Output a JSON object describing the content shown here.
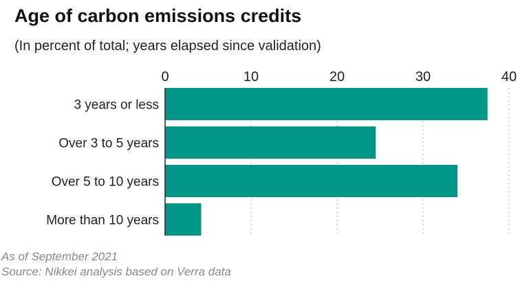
{
  "header": {
    "title": "Age of carbon emissions credits",
    "subtitle": "(In percent of total; years elapsed since validation)"
  },
  "footer": {
    "date_note": "As of September 2021",
    "source_note": "Source: Nikkei analysis based on Verra data"
  },
  "colors": {
    "bar": "#009688",
    "grid": "#bbbbbb",
    "axis": "#222222",
    "text": "#222222"
  },
  "chart_data": {
    "type": "bar",
    "orientation": "horizontal",
    "title": "Age of carbon emissions credits",
    "subtitle": "(In percent of total; years elapsed since validation)",
    "categories": [
      "3 years or less",
      "Over 3 to 5 years",
      "Over 5 to 10 years",
      "More than 10 years"
    ],
    "values": [
      37.5,
      24.5,
      34,
      4.2
    ],
    "xlim": [
      0,
      40
    ],
    "xticks": [
      0,
      10,
      20,
      30,
      40
    ],
    "grid": true,
    "legend": "none"
  }
}
